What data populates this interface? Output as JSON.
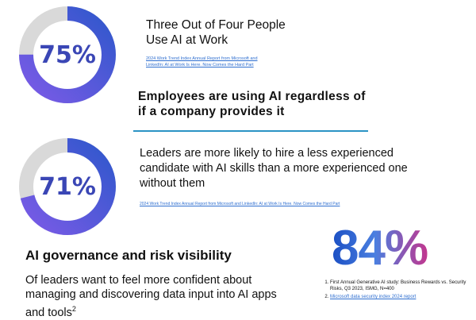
{
  "stat1": {
    "percent_label": "75%",
    "value": 75,
    "title": "Three Out of Four People Use AI at Work",
    "title_line1": "Three Out of Four People",
    "title_line2": "Use AI at Work",
    "source_line1": "2024 Work Trend Index Annual Report from Microsoft and",
    "source_line2": "LinkedIn: AI at Work Is Here. Now Comes the Hard Part"
  },
  "employees_text": "Employees are using AI regardless of if a company provides it",
  "stat2": {
    "percent_label": "71%",
    "value": 71,
    "text": "Leaders are more likely to hire a less experienced candidate with AI skills than a more experienced one without them",
    "source": "2024 Work Trend Index Annual Report from Microsoft and LinkedIn: AI at Work Is Here. Now Comes the Hard Part"
  },
  "governance": {
    "heading": "AI governance and risk visibility",
    "text": "Of leaders want to feel more confident about managing and discovering data input into AI apps and tools",
    "footnote_mark": "2"
  },
  "stat3": {
    "percent_label": "84%",
    "value": 84
  },
  "references": [
    {
      "text": "First Annual Generative AI study: Business Rewards vs. Security Risks, Q3 2023, ISMG, N=400",
      "link": false
    },
    {
      "text": "Microsoft data security index 2024 report",
      "link": true
    }
  ],
  "colors": {
    "ring_track": "#d9d9d9",
    "ring_start": "#6a4ee0",
    "ring_end": "#2f55c8",
    "accent_line": "#2b93c4",
    "percent_text": "#3a46b5",
    "link": "#2f6fd0"
  }
}
